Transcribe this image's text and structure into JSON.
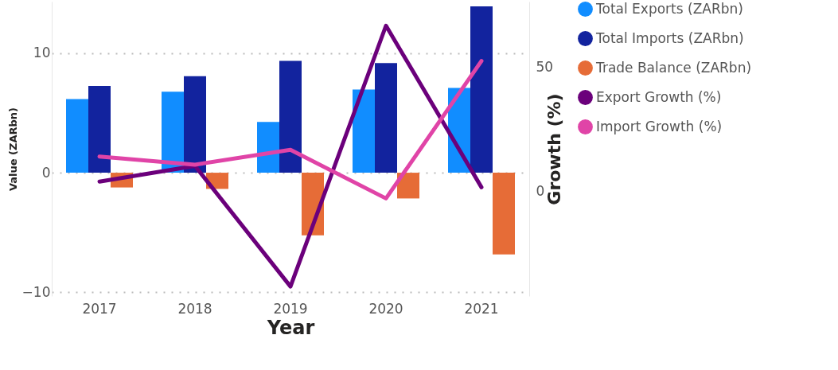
{
  "chart_data": {
    "type": "bar",
    "xlabel": "Year",
    "ylabel": "Value (ZARbn)",
    "y2label": "Growth (%)",
    "categories": [
      "2017",
      "2018",
      "2019",
      "2020",
      "2021"
    ],
    "series": [
      {
        "name": "Total Exports (ZARbn)",
        "color": "#118dff",
        "values": [
          6.15,
          6.77,
          4.25,
          6.95,
          7.08
        ]
      },
      {
        "name": "Total Imports (ZARbn)",
        "color": "#12239e",
        "values": [
          7.26,
          8.06,
          9.35,
          9.17,
          13.9
        ]
      },
      {
        "name": "Trade Balance (ZARbn)",
        "color": "#e66c37",
        "values": [
          -1.23,
          -1.35,
          -5.23,
          -2.15,
          -6.83
        ]
      },
      {
        "name": "Export Growth (%)",
        "type": "line",
        "axis": "y2",
        "color": "#6b007b",
        "values": [
          4.1,
          10.4,
          -38.2,
          66.9,
          1.8
        ]
      },
      {
        "name": "Import Growth (%)",
        "type": "line",
        "axis": "y2",
        "color": "#e044a7",
        "values": [
          14.2,
          10.9,
          16.9,
          -2.7,
          52.7
        ]
      }
    ],
    "ylim": [
      -10.3,
      14.3
    ],
    "yticks": [
      -10,
      0,
      10
    ],
    "y2lim": [
      -42,
      76.6
    ],
    "y2ticks": [
      0,
      50
    ],
    "grid": "y",
    "legend": "right",
    "marker": "none",
    "line_style": "solid"
  }
}
